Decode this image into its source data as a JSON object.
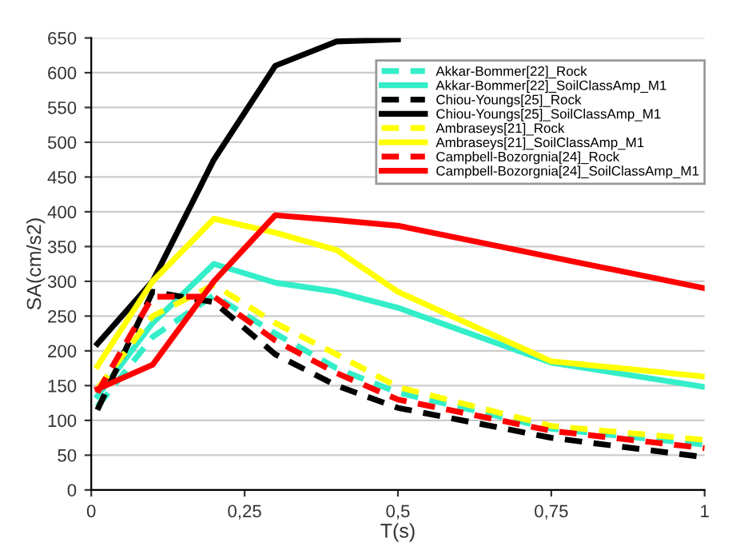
{
  "chart_data": {
    "type": "line",
    "xlabel": "T(s)",
    "ylabel": "SA(cm/s2)",
    "x": [
      0.01,
      0.1,
      0.2,
      0.3,
      0.4,
      0.5,
      0.75,
      1
    ],
    "xlim": [
      0,
      1
    ],
    "xticks": [
      0,
      {
        "value": 0.25,
        "label": "0,25"
      },
      {
        "value": 0.5,
        "label": "0,5"
      },
      {
        "value": 0.75,
        "label": "0,75"
      },
      1
    ],
    "ylim": [
      0,
      650
    ],
    "yticks": [
      0,
      50,
      100,
      150,
      200,
      250,
      300,
      350,
      400,
      450,
      500,
      550,
      600,
      650
    ],
    "grid": "y",
    "legend": "top right",
    "marker": "none",
    "series": [
      {
        "name": "Akkar-Bommer[22]_Rock",
        "color": "#33eec8",
        "line_style": "dashed",
        "values": [
          120,
          220,
          280,
          225,
          175,
          140,
          88,
          65
        ]
      },
      {
        "name": "Akkar-Bommer[22]_SoilClassAmp_M1",
        "color": "#33eec8",
        "line_style": "solid",
        "values": [
          135,
          240,
          325,
          298,
          285,
          262,
          183,
          148
        ]
      },
      {
        "name": "Chiou-Youngs[25]_Rock",
        "color": "#000000",
        "line_style": "dashed",
        "values": [
          115,
          285,
          270,
          195,
          150,
          118,
          75,
          47
        ]
      },
      {
        "name": "Chiou-Youngs[25]_SoilClassAmp_M1",
        "color": "#000000",
        "line_style": "solid",
        "values": [
          210,
          300,
          475,
          610,
          645,
          648,
          null,
          null
        ]
      },
      {
        "name": "Ambraseys[21]_Rock",
        "color": "#ffff00",
        "line_style": "dashed",
        "values": [
          145,
          250,
          295,
          240,
          195,
          148,
          92,
          72
        ]
      },
      {
        "name": "Ambraseys[21]_SoilClassAmp_M1",
        "color": "#ffff00",
        "line_style": "solid",
        "values": [
          178,
          300,
          390,
          370,
          345,
          285,
          185,
          163
        ]
      },
      {
        "name": "Campbell-Bozorgnia[24]_Rock",
        "color": "#ff0000",
        "line_style": "dashed",
        "values": [
          140,
          278,
          278,
          215,
          168,
          130,
          85,
          60
        ]
      },
      {
        "name": "Campbell-Bozorgnia[24]_SoilClassAmp_M1",
        "color": "#ff0000",
        "line_style": "solid",
        "values": [
          145,
          180,
          300,
          395,
          388,
          380,
          335,
          290
        ]
      }
    ]
  }
}
